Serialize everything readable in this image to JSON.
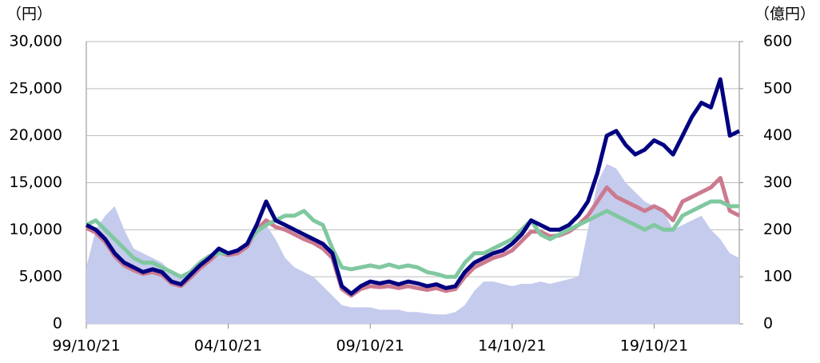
{
  "chart_data": {
    "type": "line",
    "y_label": "（円）",
    "y2_label": "（億円）",
    "categories": [
      "99/10/21",
      null,
      null,
      null,
      null,
      null,
      null,
      null,
      null,
      null,
      null,
      null,
      null,
      null,
      null,
      "04/10/21",
      null,
      null,
      null,
      null,
      null,
      null,
      null,
      null,
      null,
      null,
      null,
      null,
      null,
      null,
      "09/10/21",
      null,
      null,
      null,
      null,
      null,
      null,
      null,
      null,
      null,
      null,
      null,
      null,
      null,
      null,
      "14/10/21",
      null,
      null,
      null,
      null,
      null,
      null,
      null,
      null,
      null,
      null,
      null,
      null,
      null,
      null,
      "19/10/21",
      null,
      null,
      null,
      null,
      null,
      null,
      null,
      null,
      null
    ],
    "ylim": [
      0,
      30000
    ],
    "yticks": [
      0,
      {
        "value": 5000,
        "label": "5,000"
      },
      {
        "value": 10000,
        "label": "10,000"
      },
      {
        "value": 15000,
        "label": "15,000"
      },
      {
        "value": 20000,
        "label": "20,000"
      },
      {
        "value": 25000,
        "label": "25,000"
      },
      {
        "value": 30000,
        "label": "30,000"
      }
    ],
    "y2lim": [
      0,
      600
    ],
    "y2ticks": [
      0,
      100,
      200,
      300,
      400,
      500,
      600
    ],
    "grid": true,
    "series": [
      {
        "type": "area",
        "axis": "y2",
        "color": "#c5cbed",
        "values": [
          120,
          200,
          230,
          250,
          200,
          160,
          150,
          140,
          130,
          110,
          100,
          110,
          130,
          140,
          150,
          150,
          155,
          160,
          200,
          210,
          180,
          140,
          120,
          110,
          100,
          80,
          60,
          40,
          35,
          35,
          35,
          30,
          30,
          30,
          25,
          25,
          22,
          20,
          20,
          25,
          40,
          70,
          90,
          90,
          85,
          80,
          85,
          85,
          90,
          85,
          90,
          95,
          100,
          200,
          300,
          340,
          330,
          300,
          280,
          260,
          250,
          240,
          200,
          210,
          220,
          230,
          200,
          180,
          150,
          140
        ]
      },
      {
        "type": "line",
        "color": "#cc7a8f",
        "values": [
          10200,
          9700,
          8700,
          7200,
          6200,
          5700,
          5300,
          5500,
          5200,
          4300,
          4000,
          4900,
          5900,
          6700,
          7600,
          7300,
          7500,
          8200,
          10000,
          11000,
          10300,
          10000,
          9500,
          9000,
          8600,
          8000,
          7000,
          3700,
          3000,
          3700,
          4000,
          3900,
          4000,
          3800,
          4000,
          3800,
          3600,
          3800,
          3500,
          3700,
          5000,
          6000,
          6500,
          7000,
          7300,
          7800,
          8800,
          9800,
          9800,
          9300,
          9400,
          9800,
          10500,
          11500,
          13000,
          14500,
          13500,
          13000,
          12500,
          12000,
          12500,
          12000,
          11000,
          13000,
          13500,
          14000,
          14500,
          15500,
          12000,
          11500
        ]
      },
      {
        "type": "line",
        "color": "#80c8a0",
        "values": [
          10500,
          11000,
          10000,
          9000,
          8000,
          7000,
          6500,
          6500,
          6000,
          5500,
          5000,
          5500,
          6500,
          7200,
          7500,
          7500,
          7800,
          8500,
          9800,
          10500,
          11000,
          11500,
          11500,
          12000,
          11000,
          10500,
          8000,
          6000,
          5800,
          6000,
          6200,
          6000,
          6300,
          6000,
          6200,
          6000,
          5500,
          5300,
          5000,
          5000,
          6500,
          7500,
          7500,
          8000,
          8500,
          9000,
          10000,
          11000,
          9500,
          9000,
          9500,
          10000,
          10500,
          11000,
          11500,
          12000,
          11500,
          11000,
          10500,
          10000,
          10500,
          10000,
          10000,
          11500,
          12000,
          12500,
          13000,
          13000,
          12500,
          12500
        ]
      },
      {
        "type": "line",
        "color": "#000080",
        "values": [
          10500,
          10000,
          9000,
          7500,
          6500,
          6000,
          5500,
          5800,
          5500,
          4500,
          4200,
          5200,
          6200,
          7000,
          8000,
          7500,
          7800,
          8500,
          10500,
          13000,
          11000,
          10500,
          10000,
          9500,
          9000,
          8500,
          7500,
          4000,
          3200,
          4000,
          4500,
          4300,
          4500,
          4200,
          4500,
          4300,
          4000,
          4200,
          3800,
          4000,
          5500,
          6500,
          7000,
          7500,
          7800,
          8500,
          9500,
          11000,
          10500,
          10000,
          10000,
          10500,
          11500,
          13000,
          16000,
          20000,
          20500,
          19000,
          18000,
          18500,
          19500,
          19000,
          18000,
          20000,
          22000,
          23500,
          23000,
          26000,
          20000,
          20500
        ]
      }
    ]
  }
}
